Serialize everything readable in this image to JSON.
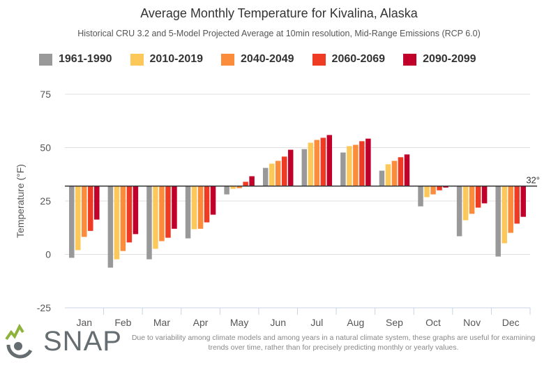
{
  "chart_data": {
    "type": "bar",
    "title": "Average Monthly Temperature for Kivalina, Alaska",
    "subtitle": "Historical CRU 3.2 and 5-Model Projected Average at 10min resolution, Mid-Range Emissions (RCP 6.0)",
    "ylabel": "Temperature (°F)",
    "xlabel": "",
    "ylim": [
      -25,
      75
    ],
    "yticks": [
      75,
      50,
      25,
      0,
      -25
    ],
    "baseline": 32,
    "baseline_label": "32°",
    "grid": true,
    "legend": "top",
    "categories": [
      "Jan",
      "Feb",
      "Mar",
      "Apr",
      "May",
      "Jun",
      "Jul",
      "Aug",
      "Sep",
      "Oct",
      "Nov",
      "Dec"
    ],
    "series": [
      {
        "name": "1961-1990",
        "color": "#999999",
        "values": [
          -1.6,
          -6.2,
          -2.3,
          7.5,
          28.1,
          40.5,
          49.3,
          47.7,
          39.2,
          22.5,
          8.5,
          -1.0
        ]
      },
      {
        "name": "2010-2019",
        "color": "#fdc85a",
        "values": [
          2.0,
          -2.3,
          2.6,
          11.8,
          30.7,
          42.5,
          52.3,
          50.7,
          42.2,
          26.8,
          16.0,
          5.2
        ]
      },
      {
        "name": "2040-2049",
        "color": "#fb8c3c",
        "values": [
          8.2,
          1.6,
          6.2,
          12.0,
          31.0,
          43.8,
          53.6,
          51.3,
          43.8,
          28.1,
          19.0,
          10.1
        ]
      },
      {
        "name": "2060-2069",
        "color": "#ef3b24",
        "values": [
          11.0,
          5.6,
          7.8,
          15.0,
          34.0,
          45.8,
          54.6,
          53.0,
          45.5,
          30.0,
          21.9,
          14.4
        ]
      },
      {
        "name": "2090-2099",
        "color": "#c0002a",
        "values": [
          16.3,
          9.5,
          12.0,
          18.6,
          36.6,
          49.0,
          55.9,
          54.2,
          46.8,
          31.3,
          23.9,
          17.6
        ]
      }
    ]
  },
  "footer": {
    "logo_text": "SNAP",
    "note": "Due to variability among climate models and among years in a natural climate system, these graphs are useful for examining trends over time, rather than for precisely predicting monthly or yearly values."
  }
}
